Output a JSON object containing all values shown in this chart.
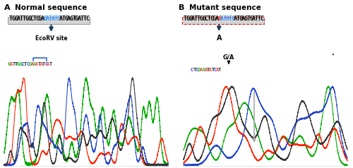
{
  "panel_A_label": "A",
  "panel_B_label": "B",
  "title_A": "Normal sequence",
  "title_B": "Mutant sequence",
  "seq_prefix": "TGGATTGGCTCGA",
  "seq_highlight": "GATATC",
  "seq_suffix": "ATGAGTGATTC",
  "ecorv_label": "EcoRV site",
  "mutant_arrow_label": "A",
  "mutant_ga_label": "G/A",
  "seq_A_bases": [
    "G",
    "A",
    "T",
    "T",
    "G",
    "G",
    "C",
    "T",
    "C",
    "G",
    "A",
    "G",
    "A",
    "T",
    "A",
    "T",
    "C",
    "A",
    "T"
  ],
  "seq_A_colors": [
    "#00aa00",
    "#ff4444",
    "#222222",
    "#222222",
    "#00aa00",
    "#00aa00",
    "#2244cc",
    "#222222",
    "#2244cc",
    "#00aa00",
    "#ff4444",
    "#00aa00",
    "#ff4444",
    "#222222",
    "#ff4444",
    "#222222",
    "#2244cc",
    "#ff4444",
    "#222222"
  ],
  "seq_B_bases": [
    "C",
    "T",
    "C",
    "G",
    "A",
    "G",
    "A",
    "T",
    "A",
    "T",
    "C",
    "A",
    "T"
  ],
  "seq_B_colors": [
    "#2244cc",
    "#222222",
    "#2244cc",
    "#00aa00",
    "#ff4444",
    "#00aa00",
    "#ff4444",
    "#222222",
    "#ff4444",
    "#222222",
    "#2244cc",
    "#ff4444",
    "#222222"
  ],
  "bg_color": "#ffffff",
  "highlight_color_A": "#3399ff",
  "highlight_color_B_first": "#ff2222",
  "highlight_color_B_rest": "#3399ff",
  "arrow_color": "#1a3a5c",
  "bracket_color": "#3366cc",
  "ga_arrow_color": "#222222",
  "gray_arrow_color": "#aaaaaa",
  "chrom_green": "#00aa00",
  "chrom_red": "#ff2200",
  "chrom_blue": "#2244cc",
  "chrom_black": "#333333"
}
